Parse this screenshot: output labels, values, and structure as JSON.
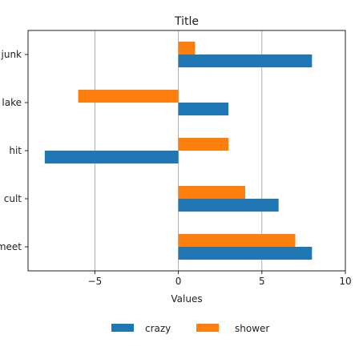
{
  "chart_data": {
    "type": "bar",
    "orientation": "horizontal",
    "title": "Title",
    "xlabel": "Values",
    "ylabel": "",
    "categories": [
      "junk",
      "lake",
      "hit",
      "cult",
      "meet"
    ],
    "series": [
      {
        "name": "crazy",
        "color": "#1f77b4",
        "values": [
          8,
          3,
          -8,
          6,
          8
        ]
      },
      {
        "name": "shower",
        "color": "#ff7f0e",
        "values": [
          1,
          -6,
          3,
          4,
          7
        ]
      }
    ],
    "xlim": [
      -9,
      10
    ],
    "xticks": [
      -5,
      0,
      5,
      10
    ],
    "xtick_labels": [
      "−5",
      "0",
      "5",
      "10"
    ],
    "grid": "vertical",
    "legend": "bottom-center"
  }
}
